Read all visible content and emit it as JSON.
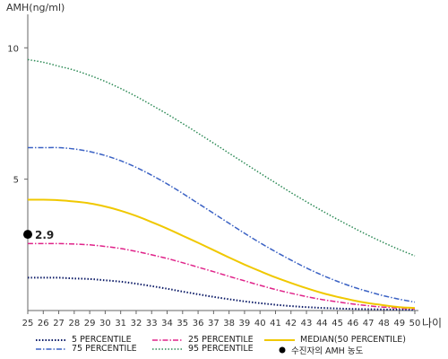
{
  "chart_data": {
    "type": "line",
    "ylabel": "AMH(ng/ml)",
    "xlabel": "나이",
    "xlim": [
      25,
      50
    ],
    "ylim": [
      0,
      11
    ],
    "yticks": [
      5,
      10
    ],
    "x": [
      25,
      26,
      27,
      28,
      29,
      30,
      31,
      32,
      33,
      34,
      35,
      36,
      37,
      38,
      39,
      40,
      41,
      42,
      43,
      44,
      45,
      46,
      47,
      48,
      49,
      50
    ],
    "series": [
      {
        "name": "5 PERCENTILE",
        "color": "#0b1a66",
        "dash": "1.5,2",
        "width": 2,
        "values": [
          1.25,
          1.25,
          1.25,
          1.22,
          1.2,
          1.15,
          1.1,
          1.02,
          0.93,
          0.83,
          0.72,
          0.62,
          0.52,
          0.43,
          0.35,
          0.28,
          0.22,
          0.17,
          0.13,
          0.1,
          0.08,
          0.06,
          0.05,
          0.04,
          0.03,
          0.02
        ]
      },
      {
        "name": "25 PERCENTILE",
        "color": "#e0248a",
        "dash": "6,2,1.5,2",
        "width": 1.5,
        "values": [
          2.55,
          2.55,
          2.55,
          2.53,
          2.5,
          2.44,
          2.36,
          2.25,
          2.12,
          1.98,
          1.82,
          1.65,
          1.48,
          1.3,
          1.13,
          0.96,
          0.8,
          0.66,
          0.53,
          0.42,
          0.33,
          0.25,
          0.18,
          0.13,
          0.09,
          0.06
        ]
      },
      {
        "name": "MEDIAN(50 PERCENTILE)",
        "color": "#f0c800",
        "dash": "",
        "width": 2,
        "values": [
          4.22,
          4.22,
          4.2,
          4.15,
          4.08,
          3.96,
          3.8,
          3.6,
          3.37,
          3.12,
          2.85,
          2.58,
          2.3,
          2.02,
          1.75,
          1.5,
          1.26,
          1.05,
          0.85,
          0.67,
          0.52,
          0.39,
          0.28,
          0.2,
          0.13,
          0.1
        ]
      },
      {
        "name": "75 PERCENTILE",
        "color": "#3b62c4",
        "dash": "6,2,1.5,2",
        "width": 1.5,
        "values": [
          6.2,
          6.2,
          6.2,
          6.15,
          6.05,
          5.9,
          5.7,
          5.45,
          5.15,
          4.82,
          4.46,
          4.08,
          3.7,
          3.32,
          2.94,
          2.58,
          2.24,
          1.92,
          1.62,
          1.35,
          1.11,
          0.9,
          0.72,
          0.56,
          0.43,
          0.32
        ]
      },
      {
        "name": "95 PERCENTILE",
        "color": "#2e8b57",
        "dash": "1.5,2",
        "width": 1.5,
        "values": [
          9.55,
          9.45,
          9.3,
          9.15,
          8.95,
          8.72,
          8.45,
          8.15,
          7.82,
          7.48,
          7.12,
          6.75,
          6.37,
          5.99,
          5.61,
          5.23,
          4.86,
          4.49,
          4.14,
          3.8,
          3.47,
          3.16,
          2.86,
          2.58,
          2.32,
          2.08
        ]
      }
    ],
    "marker": {
      "name": "수진자의 AMH 농도",
      "x": 25,
      "y": 2.9,
      "label": "2.9",
      "color": "#000000"
    },
    "grid": false,
    "legend_position": "bottom"
  }
}
